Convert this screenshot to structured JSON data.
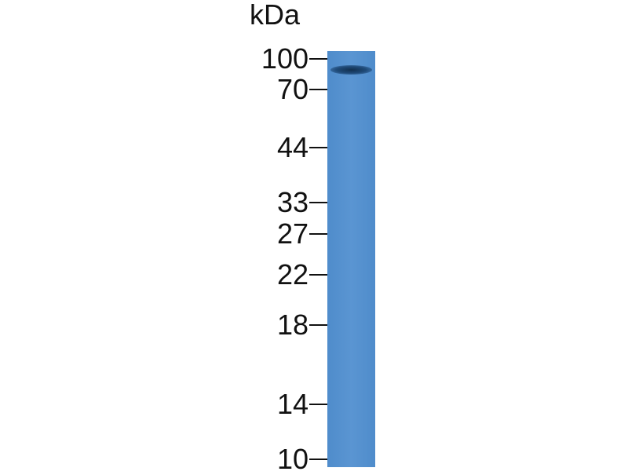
{
  "unit_label": "kDa",
  "markers": [
    {
      "label": "100",
      "kda": 100
    },
    {
      "label": "70",
      "kda": 70
    },
    {
      "label": "44",
      "kda": 44
    },
    {
      "label": "33",
      "kda": 33
    },
    {
      "label": "27",
      "kda": 27
    },
    {
      "label": "22",
      "kda": 22
    },
    {
      "label": "18",
      "kda": 18
    },
    {
      "label": "14",
      "kda": 14
    },
    {
      "label": "10",
      "kda": 10
    }
  ],
  "lanes": [
    {
      "bands": [
        {
          "kda": 88
        }
      ]
    }
  ],
  "colors": {
    "lane": "#5590cf",
    "band": "#1a3f66",
    "text": "#111111"
  }
}
